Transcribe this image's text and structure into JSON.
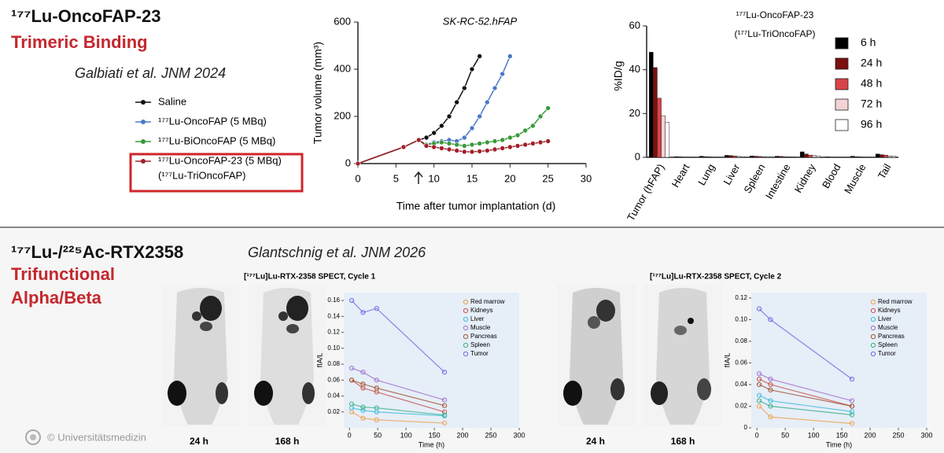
{
  "slide": {
    "top_title": "¹⁷⁷Lu-OncoFAP-23",
    "top_subtitle": "Trimeric Binding",
    "top_citation": "Galbiati et al. JNM 2024",
    "bottom_title": "¹⁷⁷Lu-/²²⁵Ac-RTX2358",
    "bottom_subtitle_1": "Trifunctional",
    "bottom_subtitle_2": "Alpha/Beta",
    "bottom_citation": "Glantschnig et al. JNM 2026",
    "image_labels": [
      "24 h",
      "168 h",
      "24 h",
      "168 h"
    ],
    "footer": "© Universitätsmedizin"
  },
  "chart_data": [
    {
      "type": "line",
      "title": "SK-RC-52.hFAP",
      "x_label": "Time after tumor implantation (d)",
      "y_label": "Tumor volume (mm³)",
      "xlim": [
        0,
        30
      ],
      "xticks": [
        0,
        5,
        10,
        15,
        20,
        25,
        30
      ],
      "ylim": [
        0,
        600
      ],
      "yticks": [
        0,
        200,
        400,
        600
      ],
      "legend_note": "(¹⁷⁷Lu-TriOncoFAP)",
      "series": [
        {
          "name": "Saline",
          "color": "#111111",
          "x": [
            0,
            6,
            8,
            9,
            10,
            11,
            12,
            13,
            14,
            15,
            16
          ],
          "values": [
            0,
            70,
            100,
            110,
            130,
            160,
            200,
            260,
            320,
            400,
            455
          ]
        },
        {
          "name": "¹⁷⁷Lu-OncoFAP (5 MBq)",
          "color": "#4a78c8",
          "x": [
            0,
            6,
            8,
            9,
            10,
            11,
            12,
            13,
            14,
            15,
            16,
            17,
            18,
            19,
            20
          ],
          "values": [
            0,
            70,
            100,
            80,
            90,
            95,
            100,
            95,
            110,
            150,
            200,
            260,
            320,
            380,
            455
          ]
        },
        {
          "name": "¹⁷⁷Lu-BiOncoFAP (5 MBq)",
          "color": "#3a9a3a",
          "x": [
            0,
            6,
            8,
            9,
            10,
            11,
            12,
            13,
            14,
            15,
            16,
            17,
            18,
            19,
            20,
            21,
            22,
            23,
            24,
            25
          ],
          "values": [
            0,
            70,
            100,
            80,
            85,
            90,
            85,
            80,
            75,
            80,
            85,
            90,
            95,
            100,
            110,
            120,
            140,
            160,
            200,
            235
          ]
        },
        {
          "name": "¹⁷⁷Lu-OncoFAP-23 (5 MBq)",
          "color": "#a3202a",
          "x": [
            0,
            6,
            8,
            9,
            10,
            11,
            12,
            13,
            14,
            15,
            16,
            17,
            18,
            19,
            20,
            21,
            22,
            23,
            24,
            25
          ],
          "values": [
            0,
            70,
            100,
            75,
            70,
            65,
            60,
            55,
            50,
            50,
            52,
            55,
            60,
            65,
            70,
            75,
            80,
            85,
            90,
            95
          ]
        }
      ]
    },
    {
      "type": "bar",
      "title": "¹⁷⁷Lu-OncoFAP-23",
      "subtitle": "(¹⁷⁷Lu-TriOncoFAP)",
      "y_label": "%ID/g",
      "ylim": [
        0,
        60
      ],
      "yticks": [
        0,
        20,
        40,
        60
      ],
      "categories": [
        "Tumor (hFAP)",
        "Heart",
        "Lung",
        "Liver",
        "Spleen",
        "Intestine",
        "Kidney",
        "Blood",
        "Muscle",
        "Tail"
      ],
      "series": [
        {
          "name": "6 h",
          "color": "#000000",
          "values": [
            48,
            0.3,
            0.5,
            0.9,
            0.6,
            0.5,
            2.5,
            0.2,
            0.5,
            1.5
          ]
        },
        {
          "name": "24 h",
          "color": "#7a1010",
          "values": [
            41,
            0.2,
            0.3,
            0.8,
            0.5,
            0.4,
            1.5,
            0.1,
            0.3,
            1.2
          ]
        },
        {
          "name": "48 h",
          "color": "#d9434b",
          "values": [
            27,
            0.1,
            0.2,
            0.6,
            0.4,
            0.3,
            1,
            0.1,
            0.2,
            1
          ]
        },
        {
          "name": "72 h",
          "color": "#f3d3d6",
          "values": [
            19,
            0.1,
            0.1,
            0.4,
            0.3,
            0.2,
            0.8,
            0,
            0.1,
            0.6
          ]
        },
        {
          "name": "96 h",
          "color": "#ffffff",
          "values": [
            16,
            0.1,
            0.1,
            0.3,
            0.3,
            0.2,
            0.6,
            0,
            0.1,
            0.5
          ]
        }
      ]
    },
    {
      "type": "scatter",
      "title": "[¹⁷⁷Lu]Lu-RTX-2358 SPECT, Cycle 1",
      "x_label": "Time (h)",
      "y_label": "fIA/L",
      "xlim": [
        -10,
        300
      ],
      "xticks": [
        0,
        50,
        100,
        150,
        200,
        250,
        300
      ],
      "ylim": [
        0,
        0.17
      ],
      "yticks": [
        0.02,
        0.04,
        0.06,
        0.08,
        {
          "value": 0.1,
          "label": "0.10"
        },
        0.12,
        0.14,
        0.16
      ],
      "x": [
        4,
        24,
        48,
        168
      ],
      "series": [
        {
          "name": "Red marrow",
          "color": "#f0a050",
          "values": [
            0.02,
            0.012,
            0.01,
            0.006
          ]
        },
        {
          "name": "Kidneys",
          "color": "#c8504a",
          "values": [
            0.06,
            0.05,
            0.045,
            0.02
          ]
        },
        {
          "name": "Liver",
          "color": "#40bcd8",
          "values": [
            0.025,
            0.022,
            0.02,
            0.015
          ]
        },
        {
          "name": "Muscle",
          "color": "#a070c8",
          "values": [
            0.075,
            0.07,
            0.06,
            0.035
          ]
        },
        {
          "name": "Pancreas",
          "color": "#a0522d",
          "values": [
            0.06,
            0.055,
            0.05,
            0.028
          ]
        },
        {
          "name": "Spleen",
          "color": "#38b088",
          "values": [
            0.03,
            0.026,
            0.025,
            0.016
          ]
        },
        {
          "name": "Tumor",
          "color": "#6a6ae0",
          "values": [
            0.16,
            0.145,
            0.15,
            0.07
          ]
        }
      ]
    },
    {
      "type": "scatter",
      "title": "[¹⁷⁷Lu]Lu-RTX-2358 SPECT, Cycle 2",
      "x_label": "Time (h)",
      "y_label": "fIA/L",
      "xlim": [
        -10,
        300
      ],
      "xticks": [
        0,
        50,
        100,
        150,
        200,
        250,
        300
      ],
      "ylim": [
        0,
        0.125
      ],
      "yticks": [
        0,
        0.02,
        0.04,
        0.06,
        0.08,
        {
          "value": 0.1,
          "label": "0.10"
        },
        0.12
      ],
      "x": [
        4,
        24,
        168
      ],
      "series": [
        {
          "name": "Red marrow",
          "color": "#f0a050",
          "values": [
            0.02,
            0.01,
            0.004
          ]
        },
        {
          "name": "Kidneys",
          "color": "#c8504a",
          "values": [
            0.045,
            0.04,
            0.02
          ]
        },
        {
          "name": "Liver",
          "color": "#40bcd8",
          "values": [
            0.03,
            0.025,
            0.015
          ]
        },
        {
          "name": "Muscle",
          "color": "#a070c8",
          "values": [
            0.05,
            0.045,
            0.025
          ]
        },
        {
          "name": "Pancreas",
          "color": "#a0522d",
          "values": [
            0.04,
            0.035,
            0.02
          ]
        },
        {
          "name": "Spleen",
          "color": "#38b088",
          "values": [
            0.025,
            0.02,
            0.012
          ]
        },
        {
          "name": "Tumor",
          "color": "#6a6ae0",
          "values": [
            0.11,
            0.1,
            0.045
          ]
        }
      ]
    }
  ]
}
